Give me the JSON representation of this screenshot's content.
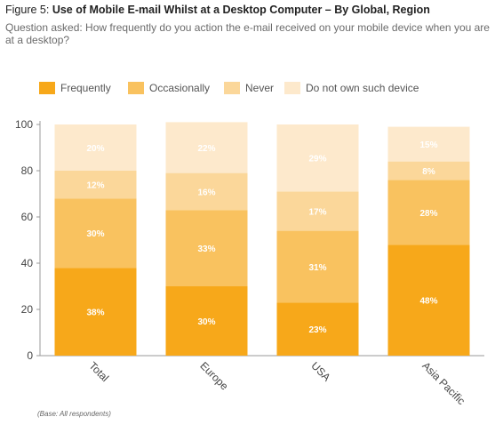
{
  "header": {
    "figure_prefix": "Figure 5: ",
    "title": "Use of Mobile E-mail Whilst at a Desktop Computer – By Global, Region",
    "question": "Question asked: How frequently do you action the e-mail received on your mobile device when you are at a desktop?"
  },
  "footnote": "(Base: All respondents)",
  "chart_data": {
    "type": "bar",
    "stacked": true,
    "categories": [
      "Total",
      "Europe",
      "USA",
      "Asia Pacific"
    ],
    "series": [
      {
        "name": "Frequently",
        "color": "#f7a81a",
        "values": [
          38,
          30,
          23,
          48
        ]
      },
      {
        "name": "Occasionally",
        "color": "#f9c25f",
        "values": [
          30,
          33,
          31,
          28
        ]
      },
      {
        "name": "Never",
        "color": "#fbd79a",
        "values": [
          12,
          16,
          17,
          8
        ]
      },
      {
        "name": "Do not own such device",
        "color": "#fde9cc",
        "values": [
          20,
          22,
          29,
          15
        ]
      }
    ],
    "data_labels": true,
    "label_suffix": "%",
    "ylim": [
      0,
      100
    ],
    "yticks": [
      0,
      20,
      40,
      60,
      80,
      100
    ],
    "legend_position": "top",
    "grid": false,
    "x_tick_rotation": "diagonal"
  }
}
